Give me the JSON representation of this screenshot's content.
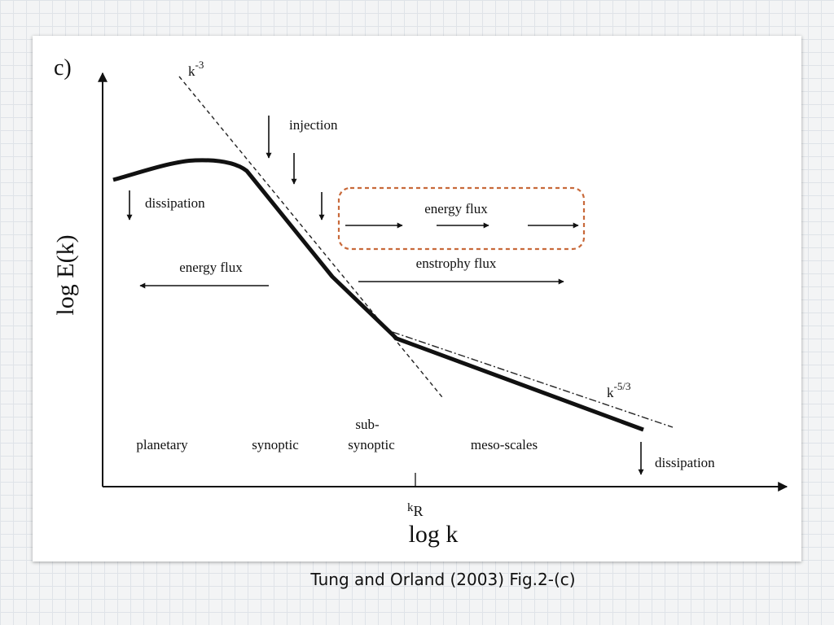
{
  "panel_label": "c)",
  "axes": {
    "y_label": "log E(k)",
    "x_label": "log k",
    "x_tick": {
      "base": "k",
      "sub": "R"
    }
  },
  "slopes": {
    "steep": {
      "base": "k",
      "exp": "-3"
    },
    "shallow": {
      "base": "k",
      "exp": "-5/3"
    }
  },
  "annotations": {
    "injection": "injection",
    "dissipation_left": "dissipation",
    "dissipation_right": "dissipation",
    "energy_flux_box": "energy flux",
    "energy_flux_left": "energy flux",
    "enstrophy_flux": "enstrophy flux"
  },
  "regions": {
    "planetary": "planetary",
    "synoptic": "synoptic",
    "subsynoptic_line1": "sub-",
    "subsynoptic_line2": "synoptic",
    "mesoscales": "meso-scales"
  },
  "caption": "Tung and Orland (2003) Fig.2-(c)",
  "colors": {
    "highlight_box": "#c8693a",
    "ink": "#111111"
  }
}
